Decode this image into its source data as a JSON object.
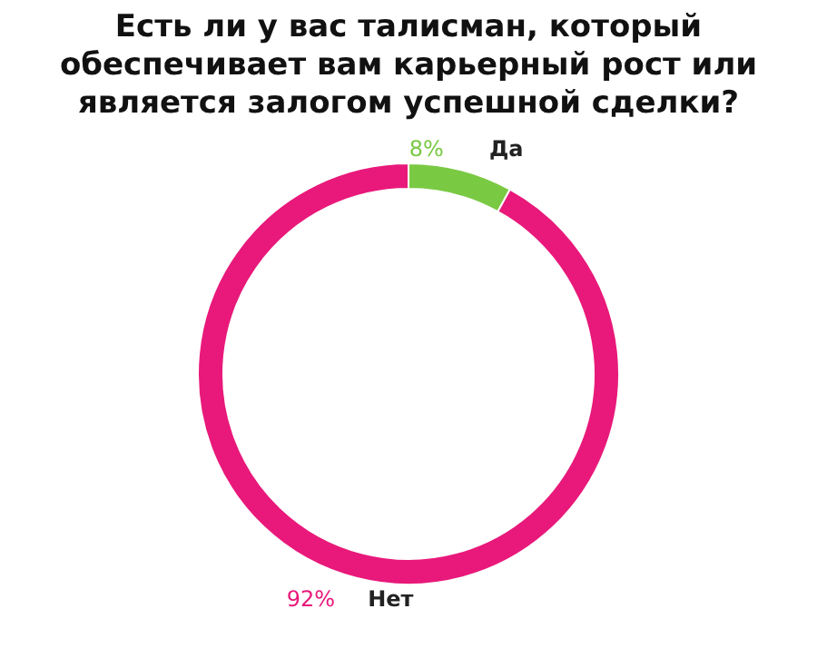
{
  "chart_data": {
    "type": "donut",
    "title": [
      "Есть ли у вас талисман, который",
      "обеспечивает вам карьерный рост или",
      "является залогом успешной сделки?"
    ],
    "categories": [
      "Да",
      "Нет"
    ],
    "values": [
      8,
      92
    ],
    "colors": [
      "#7ac943",
      "#e8197a"
    ],
    "value_labels": [
      "8%",
      "92%"
    ],
    "legend": false
  }
}
